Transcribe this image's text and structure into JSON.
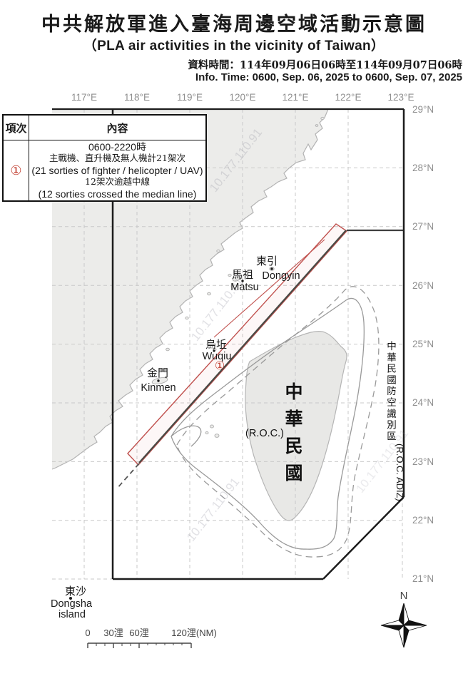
{
  "header": {
    "title": "中共解放軍進入臺海周邊空域活動示意圖",
    "subtitle": "（PLA air activities in the vicinity of Taiwan）",
    "data_time_zh": "資料時間：114年09月06日06時至114年09月07日06時",
    "data_time_en": "Info. Time: 0600, Sep. 06, 2025 to 0600, Sep. 07, 2025"
  },
  "table": {
    "col_item": "項次",
    "col_content": "內容",
    "item_no": "①",
    "line1": "0600-2220時",
    "line2": "主戰機、直升機及無人機計21架次",
    "line3": "(21 sorties of fighter / helicopter / UAV)",
    "line4": "12架次逾越中線",
    "line5": "(12 sorties crossed the median line)"
  },
  "map": {
    "lon_labels": [
      "117°E",
      "118°E",
      "119°E",
      "120°E",
      "121°E",
      "122°E",
      "123°E"
    ],
    "lat_labels": [
      "29°N",
      "28°N",
      "27°N",
      "26°N",
      "25°N",
      "24°N",
      "23°N",
      "22°N",
      "21°N"
    ],
    "places": {
      "dongyin_zh": "東引",
      "dongyin_en": "Dongyin",
      "matsu_zh": "馬祖",
      "matsu_en": "Matsu",
      "wuqiu_zh": "烏坵",
      "wuqiu_en": "Wuqiu",
      "wuqiu_marker": "①",
      "kinmen_zh": "金門",
      "kinmen_en": "Kinmen",
      "dongsha_zh": "東沙",
      "dongsha_en1": "Dongsha",
      "dongsha_en2": "island"
    },
    "taiwan": {
      "name_zh": "中華民國",
      "name_en": "(R.O.C.)"
    },
    "adiz": {
      "label_zh": "中華民國防空識別區",
      "label_en": "(R.O.C. ADIZ)"
    },
    "watermark": "10.177.110.91",
    "compass_label": "N",
    "scale": {
      "t0": "0",
      "t30": "30浬",
      "t60": "60浬",
      "t120": "120浬(NM)"
    }
  },
  "colors": {
    "accent_red": "#c0504d",
    "median_dark": "#4a4a45",
    "adiz_black": "#1c1c1c",
    "land_gray": "#ececea",
    "ring_gray": "#9a9a9a",
    "grid_gray": "#c9c9c9"
  }
}
